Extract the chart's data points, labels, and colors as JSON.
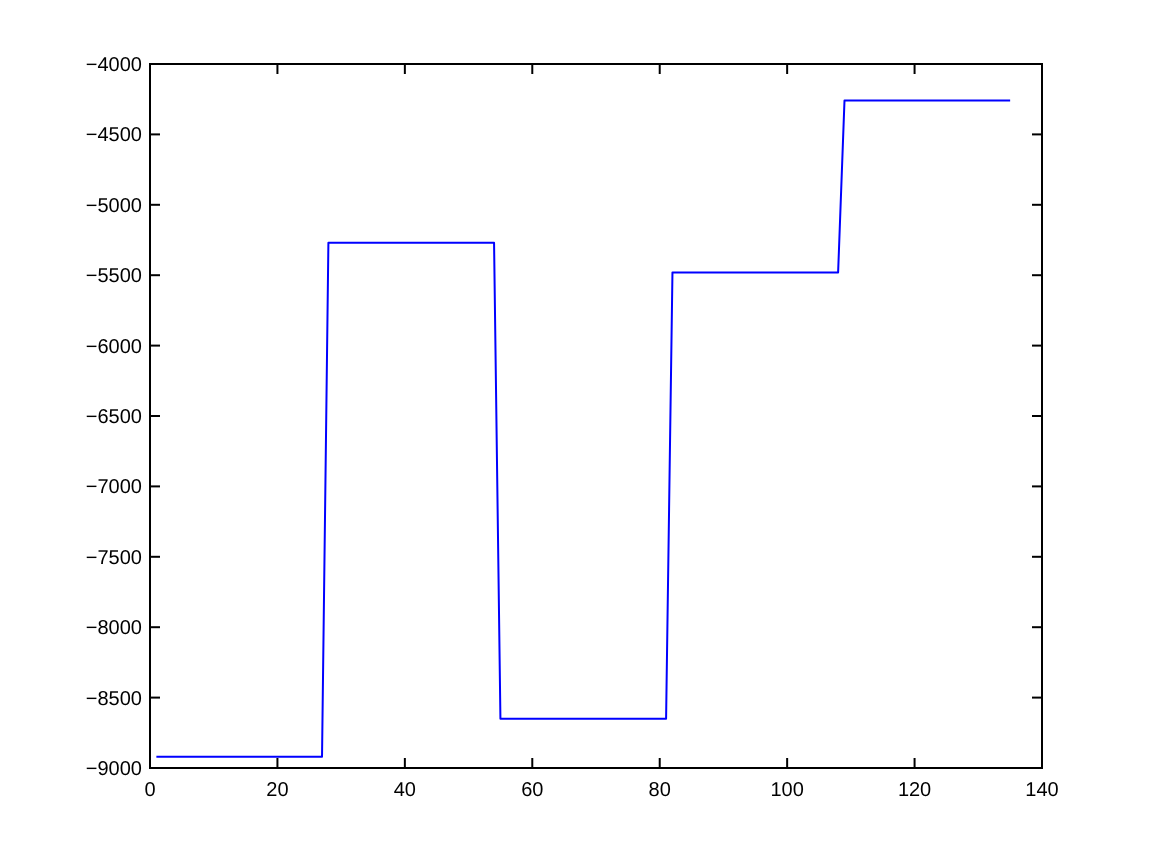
{
  "chart_data": {
    "type": "line",
    "x": [
      1,
      27,
      28,
      54,
      55,
      81,
      82,
      108,
      109,
      135
    ],
    "series": [
      {
        "color": "#0000ff",
        "values": [
          -8920,
          -8920,
          -5270,
          -5270,
          -8650,
          -8650,
          -5480,
          -5480,
          -4260,
          -4260
        ]
      }
    ],
    "xlim": [
      0,
      140
    ],
    "xticks": [
      0,
      20,
      40,
      60,
      80,
      100,
      120,
      140
    ],
    "ylim": [
      -9000,
      -4000
    ],
    "yticks": [
      -9000,
      -8500,
      -8000,
      -7500,
      -7000,
      -6500,
      -6000,
      -5500,
      -5000,
      -4500,
      -4000
    ],
    "grid": false,
    "marker": "none",
    "line_style": "solid"
  }
}
